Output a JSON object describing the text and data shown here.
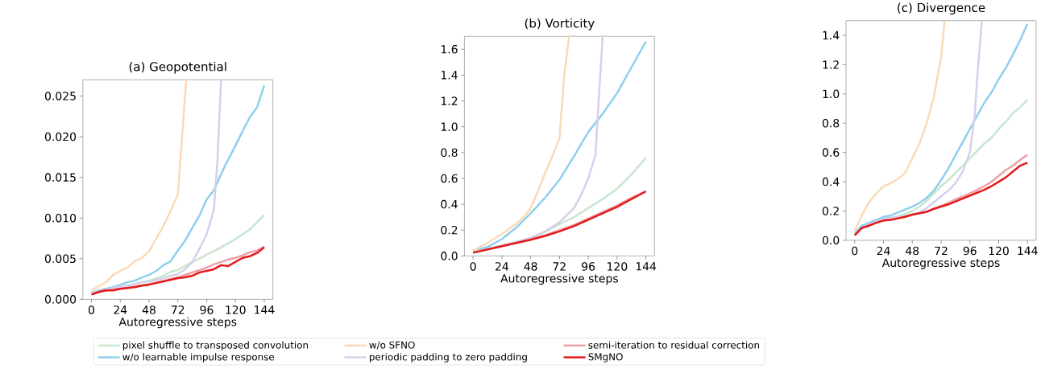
{
  "chart_data": [
    {
      "type": "line",
      "title": "(a) Geopotential",
      "xlabel": "Autoregressive steps",
      "legend": "bottom",
      "x": [
        0,
        6,
        12,
        18,
        24,
        30,
        36,
        42,
        48,
        54,
        60,
        66,
        72,
        78,
        84,
        90,
        96,
        102,
        108,
        114,
        120,
        126,
        132,
        138,
        144
      ],
      "xlim": [
        -7.2,
        151.2
      ],
      "xticks": [
        0,
        24,
        48,
        72,
        96,
        120,
        144
      ],
      "ylim": [
        0,
        0.027
      ],
      "yticks": [
        {
          "value": 0,
          "label": "0.000"
        },
        {
          "value": 0.005,
          "label": "0.005"
        },
        {
          "value": 0.01,
          "label": "0.010"
        },
        {
          "value": 0.015,
          "label": "0.015"
        },
        {
          "value": 0.02,
          "label": "0.020"
        },
        {
          "value": 0.025,
          "label": "0.025"
        }
      ],
      "series": [
        {
          "name": "pixel shuffle to transposed convolution",
          "color": "#c7e6cf",
          "values": [
            0.0008,
            0.001,
            0.0012,
            0.0014,
            0.0016,
            0.0017,
            0.0019,
            0.0021,
            0.0023,
            0.0026,
            0.0029,
            0.0034,
            0.0036,
            0.0041,
            0.0046,
            0.005,
            0.0055,
            0.0059,
            0.0064,
            0.0069,
            0.0074,
            0.008,
            0.0086,
            0.0095,
            0.0104
          ]
        },
        {
          "name": "w/o learnable impulse response",
          "color": "#8ecfee",
          "values": [
            0.0008,
            0.0011,
            0.0013,
            0.0015,
            0.0018,
            0.0021,
            0.0023,
            0.0027,
            0.003,
            0.0035,
            0.0042,
            0.0047,
            0.006,
            0.0072,
            0.0088,
            0.0103,
            0.0123,
            0.0134,
            0.0154,
            0.0172,
            0.0189,
            0.0207,
            0.0224,
            0.0236,
            0.0263
          ]
        },
        {
          "name": "w/o SFNO",
          "color": "#fbd9b5",
          "x": [
            0,
            6,
            12,
            18,
            24,
            30,
            36,
            42,
            48,
            54,
            60,
            66,
            72,
            79
          ],
          "values": [
            0.0011,
            0.0016,
            0.0021,
            0.003,
            0.0035,
            0.0039,
            0.0047,
            0.0051,
            0.0059,
            0.0075,
            0.009,
            0.0109,
            0.0129,
            0.027
          ]
        },
        {
          "name": "periodic padding to zero padding",
          "color": "#d3d1ea",
          "x": [
            0,
            6,
            12,
            18,
            24,
            30,
            36,
            42,
            48,
            54,
            60,
            66,
            72,
            78,
            84,
            90,
            96,
            102,
            105,
            108
          ],
          "values": [
            0.0008,
            0.001,
            0.0012,
            0.0014,
            0.0016,
            0.0017,
            0.0019,
            0.0021,
            0.0022,
            0.0024,
            0.0026,
            0.0029,
            0.0031,
            0.0037,
            0.0046,
            0.0062,
            0.008,
            0.011,
            0.017,
            0.027
          ]
        },
        {
          "name": "semi-iteration to residual correction",
          "color": "#eda0a5",
          "values": [
            0.0006,
            0.0009,
            0.0011,
            0.0012,
            0.0013,
            0.0014,
            0.0016,
            0.0017,
            0.0019,
            0.0021,
            0.0023,
            0.0025,
            0.0027,
            0.003,
            0.0033,
            0.0036,
            0.0039,
            0.0043,
            0.0046,
            0.0049,
            0.0051,
            0.0054,
            0.0058,
            0.006,
            0.0065
          ]
        },
        {
          "name": "SMgNO",
          "color": "#e31a1c",
          "values": [
            0.0006,
            0.0009,
            0.0011,
            0.0011,
            0.0013,
            0.0014,
            0.0015,
            0.0017,
            0.0018,
            0.002,
            0.0022,
            0.0024,
            0.0026,
            0.0027,
            0.0029,
            0.0033,
            0.0035,
            0.0037,
            0.0042,
            0.0041,
            0.0046,
            0.0051,
            0.0053,
            0.0057,
            0.0064
          ]
        }
      ]
    },
    {
      "type": "line",
      "title": "(b) Vorticity",
      "xlabel": "Autoregressive steps",
      "x": [
        0,
        12,
        24,
        36,
        48,
        60,
        72,
        84,
        96,
        108,
        120,
        132,
        144
      ],
      "xlim": [
        -7.2,
        151.2
      ],
      "xticks": [
        0,
        24,
        48,
        72,
        96,
        120,
        144
      ],
      "ylim": [
        0,
        1.7
      ],
      "yticks": [
        {
          "value": 0,
          "label": "0.0"
        },
        {
          "value": 0.2,
          "label": "0.2"
        },
        {
          "value": 0.4,
          "label": "0.4"
        },
        {
          "value": 0.6,
          "label": "0.6"
        },
        {
          "value": 0.8,
          "label": "0.8"
        },
        {
          "value": 1.0,
          "label": "1.0"
        },
        {
          "value": 1.2,
          "label": "1.2"
        },
        {
          "value": 1.4,
          "label": "1.4"
        },
        {
          "value": 1.6,
          "label": "1.6"
        }
      ],
      "series": [
        {
          "color": "#c7e6cf",
          "values": [
            0.03,
            0.055,
            0.08,
            0.11,
            0.14,
            0.185,
            0.245,
            0.3,
            0.37,
            0.44,
            0.52,
            0.63,
            0.76
          ]
        },
        {
          "color": "#8ecfee",
          "values": [
            0.04,
            0.07,
            0.13,
            0.22,
            0.33,
            0.45,
            0.59,
            0.77,
            0.96,
            1.1,
            1.26,
            1.46,
            1.66
          ]
        },
        {
          "color": "#fbd9b5",
          "x": [
            0,
            12,
            24,
            36,
            42,
            48,
            54,
            60,
            66,
            72,
            76,
            80
          ],
          "values": [
            0.04,
            0.1,
            0.17,
            0.25,
            0.3,
            0.37,
            0.5,
            0.64,
            0.77,
            0.91,
            1.4,
            1.7
          ]
        },
        {
          "color": "#d3d1ea",
          "x": [
            0,
            12,
            24,
            36,
            48,
            60,
            72,
            84,
            90,
            96,
            102,
            104,
            106,
            108
          ],
          "values": [
            0.03,
            0.055,
            0.08,
            0.11,
            0.14,
            0.19,
            0.26,
            0.37,
            0.47,
            0.6,
            0.78,
            1.1,
            1.4,
            1.7
          ]
        },
        {
          "color": "#eda0a5",
          "values": [
            0.025,
            0.05,
            0.075,
            0.1,
            0.13,
            0.16,
            0.2,
            0.24,
            0.29,
            0.34,
            0.39,
            0.45,
            0.5
          ]
        },
        {
          "color": "#e31a1c",
          "values": [
            0.025,
            0.05,
            0.075,
            0.1,
            0.125,
            0.155,
            0.19,
            0.23,
            0.28,
            0.33,
            0.38,
            0.44,
            0.5
          ]
        }
      ]
    },
    {
      "type": "line",
      "title": "(c) Divergence",
      "xlabel": "Autoregressive steps",
      "x": [
        0,
        6,
        12,
        18,
        24,
        30,
        36,
        42,
        48,
        54,
        60,
        66,
        72,
        78,
        84,
        90,
        96,
        102,
        108,
        114,
        120,
        126,
        132,
        138,
        144
      ],
      "xlim": [
        -7.2,
        151.2
      ],
      "xticks": [
        0,
        24,
        48,
        72,
        96,
        120,
        144
      ],
      "ylim": [
        0,
        1.5
      ],
      "yticks": [
        {
          "value": 0,
          "label": "0.0"
        },
        {
          "value": 0.2,
          "label": "0.2"
        },
        {
          "value": 0.4,
          "label": "0.4"
        },
        {
          "value": 0.6,
          "label": "0.6"
        },
        {
          "value": 0.8,
          "label": "0.8"
        },
        {
          "value": 1.0,
          "label": "1.0"
        },
        {
          "value": 1.2,
          "label": "1.2"
        },
        {
          "value": 1.4,
          "label": "1.4"
        }
      ],
      "series": [
        {
          "color": "#c7e6cf",
          "values": [
            0.05,
            0.09,
            0.11,
            0.13,
            0.15,
            0.155,
            0.165,
            0.18,
            0.2,
            0.23,
            0.27,
            0.32,
            0.37,
            0.41,
            0.46,
            0.51,
            0.56,
            0.61,
            0.66,
            0.7,
            0.76,
            0.81,
            0.87,
            0.91,
            0.96
          ]
        },
        {
          "color": "#8ecfee",
          "values": [
            0.05,
            0.1,
            0.12,
            0.14,
            0.16,
            0.17,
            0.19,
            0.21,
            0.23,
            0.255,
            0.29,
            0.34,
            0.41,
            0.49,
            0.58,
            0.67,
            0.76,
            0.85,
            0.94,
            1.01,
            1.1,
            1.18,
            1.27,
            1.37,
            1.48
          ]
        },
        {
          "color": "#fbd9b5",
          "x": [
            0,
            6,
            12,
            18,
            24,
            30,
            36,
            42,
            48,
            54,
            60,
            66,
            72,
            75
          ],
          "values": [
            0.07,
            0.17,
            0.26,
            0.32,
            0.37,
            0.39,
            0.42,
            0.46,
            0.56,
            0.66,
            0.8,
            0.98,
            1.25,
            1.5
          ]
        },
        {
          "color": "#d3d1ea",
          "x": [
            0,
            12,
            24,
            36,
            48,
            54,
            60,
            66,
            72,
            78,
            84,
            90,
            96,
            100,
            102,
            104,
            106
          ],
          "values": [
            0.05,
            0.11,
            0.145,
            0.16,
            0.175,
            0.19,
            0.22,
            0.26,
            0.3,
            0.34,
            0.39,
            0.47,
            0.6,
            0.85,
            1.1,
            1.3,
            1.5
          ]
        },
        {
          "color": "#eda0a5",
          "values": [
            0.035,
            0.085,
            0.1,
            0.12,
            0.135,
            0.14,
            0.15,
            0.16,
            0.175,
            0.185,
            0.195,
            0.215,
            0.235,
            0.255,
            0.28,
            0.3,
            0.32,
            0.345,
            0.37,
            0.4,
            0.44,
            0.48,
            0.51,
            0.55,
            0.585
          ]
        },
        {
          "color": "#e31a1c",
          "values": [
            0.035,
            0.085,
            0.1,
            0.12,
            0.135,
            0.14,
            0.15,
            0.16,
            0.175,
            0.185,
            0.195,
            0.215,
            0.23,
            0.245,
            0.265,
            0.285,
            0.305,
            0.325,
            0.345,
            0.37,
            0.4,
            0.43,
            0.47,
            0.51,
            0.53
          ]
        }
      ]
    }
  ]
}
